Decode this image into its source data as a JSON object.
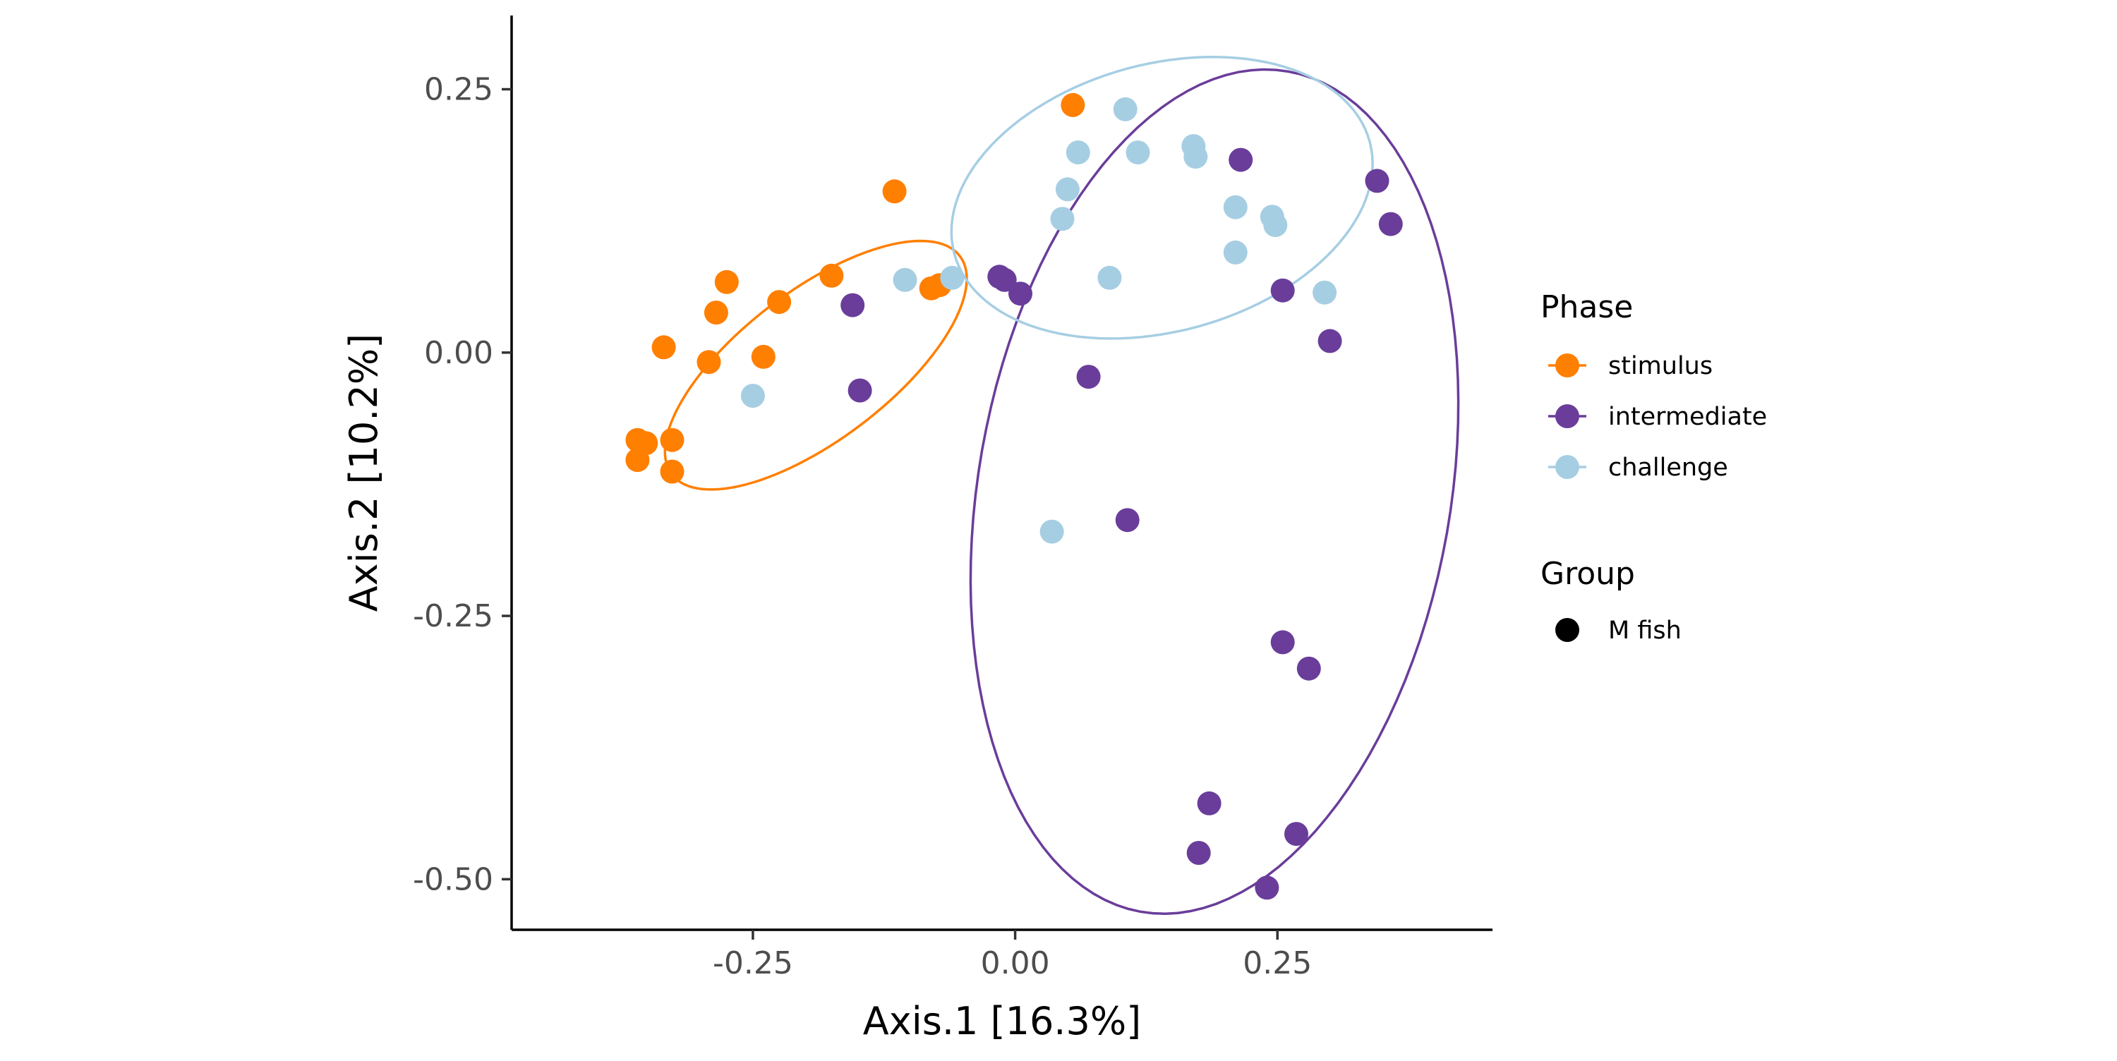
{
  "chart_data": {
    "type": "scatter",
    "xlabel": "Axis.1   [16.3%]",
    "ylabel": "Axis.2   [10.2%]",
    "xlim": [
      -0.48,
      0.455
    ],
    "ylim": [
      -0.548,
      0.32
    ],
    "x_ticks": [
      -0.25,
      0.0,
      0.25
    ],
    "y_ticks": [
      0.25,
      0.0,
      -0.25,
      -0.5
    ],
    "x_tick_labels": [
      "-0.25",
      "0.00",
      "0.25"
    ],
    "y_tick_labels": [
      "0.25",
      "0.00",
      "-0.25",
      "-0.50"
    ],
    "grid": false,
    "legend_placement": "right",
    "legends": {
      "phase_title": "Phase",
      "group_title": "Group",
      "group_items": [
        "M fish"
      ]
    },
    "series": [
      {
        "name": "stimulus",
        "color": "#FF7F00",
        "points": [
          [
            0.055,
            0.235
          ],
          [
            -0.115,
            0.153
          ],
          [
            -0.175,
            0.073
          ],
          [
            -0.275,
            0.067
          ],
          [
            -0.225,
            0.048
          ],
          [
            -0.285,
            0.038
          ],
          [
            -0.335,
            0.005
          ],
          [
            -0.292,
            -0.009
          ],
          [
            -0.24,
            -0.004
          ],
          [
            -0.36,
            -0.083
          ],
          [
            -0.352,
            -0.086
          ],
          [
            -0.327,
            -0.083
          ],
          [
            -0.36,
            -0.102
          ],
          [
            -0.327,
            -0.113
          ],
          [
            -0.08,
            0.061
          ],
          [
            -0.072,
            0.064
          ]
        ],
        "ellipse": {
          "cx": -0.19,
          "cy": -0.012,
          "rx": 0.172,
          "ry": 0.071,
          "angle_deg": 37
        }
      },
      {
        "name": "intermediate",
        "color": "#6A3D9A",
        "points": [
          [
            0.215,
            0.183
          ],
          [
            0.345,
            0.163
          ],
          [
            0.358,
            0.122
          ],
          [
            -0.155,
            0.045
          ],
          [
            -0.015,
            0.072
          ],
          [
            -0.01,
            0.069
          ],
          [
            0.005,
            0.056
          ],
          [
            0.255,
            0.059
          ],
          [
            0.3,
            0.011
          ],
          [
            0.07,
            -0.023
          ],
          [
            -0.148,
            -0.036
          ],
          [
            0.107,
            -0.159
          ],
          [
            0.255,
            -0.275
          ],
          [
            0.28,
            -0.3
          ],
          [
            0.185,
            -0.428
          ],
          [
            0.175,
            -0.475
          ],
          [
            0.268,
            -0.457
          ],
          [
            0.24,
            -0.508
          ]
        ],
        "ellipse": {
          "cx": 0.19,
          "cy": -0.132,
          "rx": 0.405,
          "ry": 0.225,
          "angle_deg": 80
        }
      },
      {
        "name": "challenge",
        "color": "#A6CEE3",
        "points": [
          [
            0.105,
            0.231
          ],
          [
            0.06,
            0.19
          ],
          [
            0.117,
            0.19
          ],
          [
            0.17,
            0.196
          ],
          [
            0.172,
            0.186
          ],
          [
            0.05,
            0.155
          ],
          [
            0.21,
            0.138
          ],
          [
            0.245,
            0.129
          ],
          [
            0.248,
            0.121
          ],
          [
            0.045,
            0.127
          ],
          [
            0.21,
            0.095
          ],
          [
            -0.105,
            0.069
          ],
          [
            -0.06,
            0.071
          ],
          [
            0.09,
            0.071
          ],
          [
            0.295,
            0.057
          ],
          [
            -0.25,
            -0.041
          ],
          [
            0.035,
            -0.17
          ]
        ],
        "ellipse": {
          "cx": 0.14,
          "cy": 0.147,
          "rx": 0.205,
          "ry": 0.127,
          "angle_deg": 15
        }
      }
    ]
  }
}
